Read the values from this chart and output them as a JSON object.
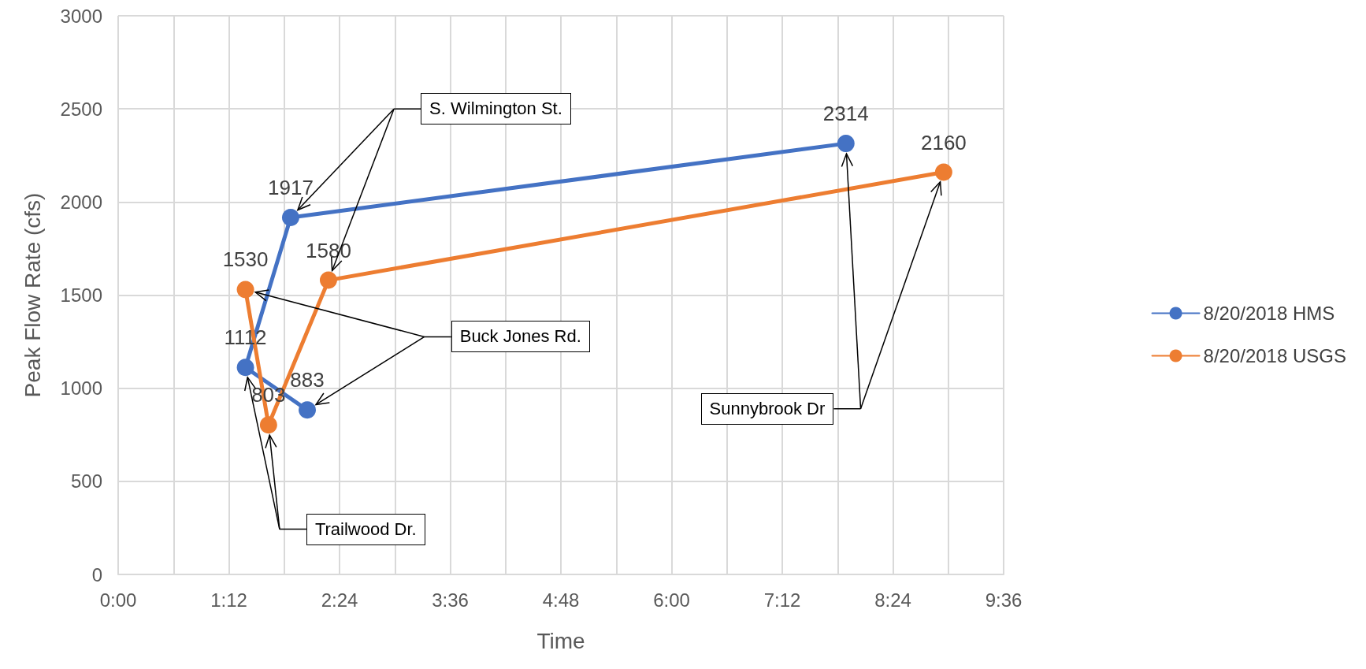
{
  "chart_data": {
    "type": "line",
    "xlabel": "Time",
    "ylabel": "Peak Flow Rate (cfs)",
    "series": [
      {
        "name": "8/20/2018 HMS",
        "color": "#4472c4",
        "x": [
          2.05,
          1.38,
          1.87,
          7.89
        ],
        "values": [
          883,
          1112,
          1917,
          2314
        ]
      },
      {
        "name": "8/20/2018 USGS",
        "color": "#ed7d31",
        "x": [
          1.38,
          1.63,
          2.28,
          8.95
        ],
        "values": [
          1530,
          803,
          1580,
          2160
        ]
      }
    ],
    "xlim": [
      0,
      9.6
    ],
    "xticks": [
      {
        "value": 0,
        "label": "0:00"
      },
      {
        "value": 0.6,
        "label": null
      },
      {
        "value": 1.2,
        "label": "1:12"
      },
      {
        "value": 1.8,
        "label": null
      },
      {
        "value": 2.4,
        "label": "2:24"
      },
      {
        "value": 3,
        "label": null
      },
      {
        "value": 3.6,
        "label": "3:36"
      },
      {
        "value": 4.2,
        "label": null
      },
      {
        "value": 4.8,
        "label": "4:48"
      },
      {
        "value": 5.4,
        "label": null
      },
      {
        "value": 6,
        "label": "6:00"
      },
      {
        "value": 6.6,
        "label": null
      },
      {
        "value": 7.2,
        "label": "7:12"
      },
      {
        "value": 7.8,
        "label": null
      },
      {
        "value": 8.4,
        "label": "8:24"
      },
      {
        "value": 9,
        "label": null
      },
      {
        "value": 9.6,
        "label": "9:36"
      }
    ],
    "ylim": [
      0,
      3000
    ],
    "yticks": [
      0,
      500,
      1000,
      1500,
      2000,
      2500,
      3000
    ],
    "grid": true,
    "legend": "right",
    "marker": "circle",
    "line_style": "solid",
    "data_labels": true,
    "annotations": [
      "S. Wilmington St.",
      "Buck Jones Rd.",
      "Trailwood Dr.",
      "Sunnybrook Dr"
    ]
  }
}
